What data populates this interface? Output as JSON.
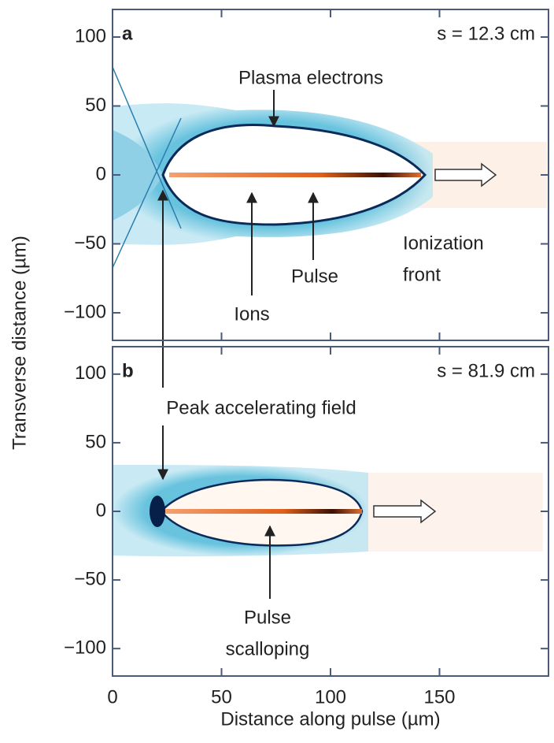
{
  "chart_data": [
    {
      "type": "image",
      "panel_label": "a",
      "annotation": "s = 12.3 cm",
      "xlim": [
        0,
        200
      ],
      "xticks": [
        0,
        50,
        100,
        150
      ],
      "ylim": [
        -120,
        120
      ],
      "yticks": [
        {
          "value": -100,
          "label": "−100"
        },
        {
          "value": -50,
          "label": "−50"
        },
        0,
        50,
        100
      ],
      "labels": [
        [
          "Plasma electrons"
        ],
        [
          "Ionization",
          "front"
        ],
        [
          "Pulse"
        ],
        [
          "Ions"
        ]
      ]
    },
    {
      "type": "image",
      "panel_label": "b",
      "annotation": "s = 81.9 cm",
      "xlim": [
        0,
        200
      ],
      "xticks": [
        0,
        50,
        100,
        150
      ],
      "ylim": [
        -120,
        120
      ],
      "yticks": [
        {
          "value": -100,
          "label": "−100"
        },
        {
          "value": -50,
          "label": "−50"
        },
        0,
        50,
        100
      ],
      "labels": [
        [
          "Peak accelerating field"
        ],
        [
          "Pulse",
          "scalloping"
        ]
      ]
    }
  ],
  "xlabel": "Distance along pulse (µm)",
  "ylabel": "Transverse distance (µm)"
}
